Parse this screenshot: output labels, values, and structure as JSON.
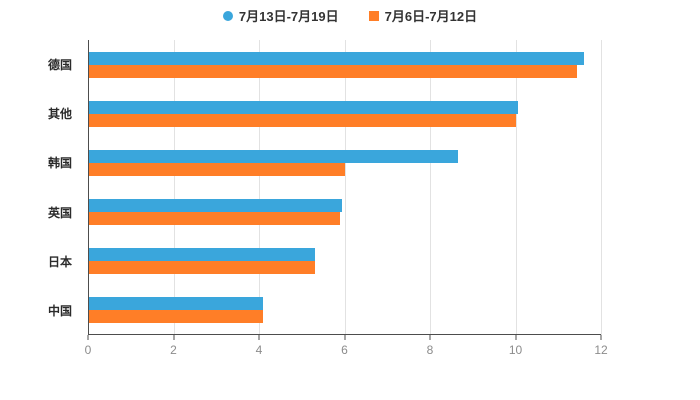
{
  "chart_data": {
    "type": "bar",
    "orientation": "horizontal",
    "title": "",
    "xlabel": "",
    "ylabel": "",
    "categories": [
      "德国",
      "其他",
      "韩国",
      "英国",
      "日本",
      "中国"
    ],
    "series": [
      {
        "name": "7月13日-7月19日",
        "color": "#3AA6DC",
        "values": [
          11.6,
          10.05,
          8.65,
          5.95,
          5.3,
          4.1
        ]
      },
      {
        "name": "7月6日-7月12日",
        "color": "#FF7E27",
        "values": [
          11.45,
          10.0,
          6.0,
          5.9,
          5.3,
          4.1
        ]
      }
    ],
    "x_axis": {
      "min": 0,
      "max": 12,
      "ticks": [
        0,
        2,
        4,
        6,
        8,
        10,
        12
      ]
    },
    "legend_position": "top",
    "grid": true
  },
  "legend": {
    "items": [
      {
        "label": "7月13日-7月19日",
        "color": "#3AA6DC",
        "marker": "circle"
      },
      {
        "label": "7月6日-7月12日",
        "color": "#FF7E27",
        "marker": "square"
      }
    ]
  }
}
